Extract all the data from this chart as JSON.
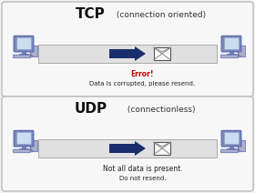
{
  "background_color": "#f2f2f2",
  "panel1": {
    "title_bold": "TCP",
    "title_normal": " (connection oriented)",
    "border_color": "#bbbbbb",
    "panel_bg": "#f7f7f7",
    "arrow_color": "#1a2e6e",
    "channel_color": "#e0e0e0",
    "channel_border": "#aaaaaa",
    "error_label": "Error!",
    "error_color": "#cc0000",
    "desc_label": "Data is corrupted, please resend.",
    "desc_color": "#222222"
  },
  "panel2": {
    "title_bold": "UDP",
    "title_normal": " (connectionless)",
    "border_color": "#bbbbbb",
    "panel_bg": "#f7f7f7",
    "arrow_color": "#1a2e6e",
    "channel_color": "#e0e0e0",
    "channel_border": "#aaaaaa",
    "error_label": "Not all data is present.",
    "error_color": "#222222",
    "desc_label": "Do not resend.",
    "desc_color": "#222222"
  },
  "computer_monitor_color": "#7788bb",
  "computer_screen_color": "#c8ddf0",
  "computer_body_color": "#8899cc",
  "computer_dark": "#5566aa",
  "computer_tan": "#c8b87a",
  "envelope_fill": "#f8f8f8",
  "envelope_line": "#555555"
}
